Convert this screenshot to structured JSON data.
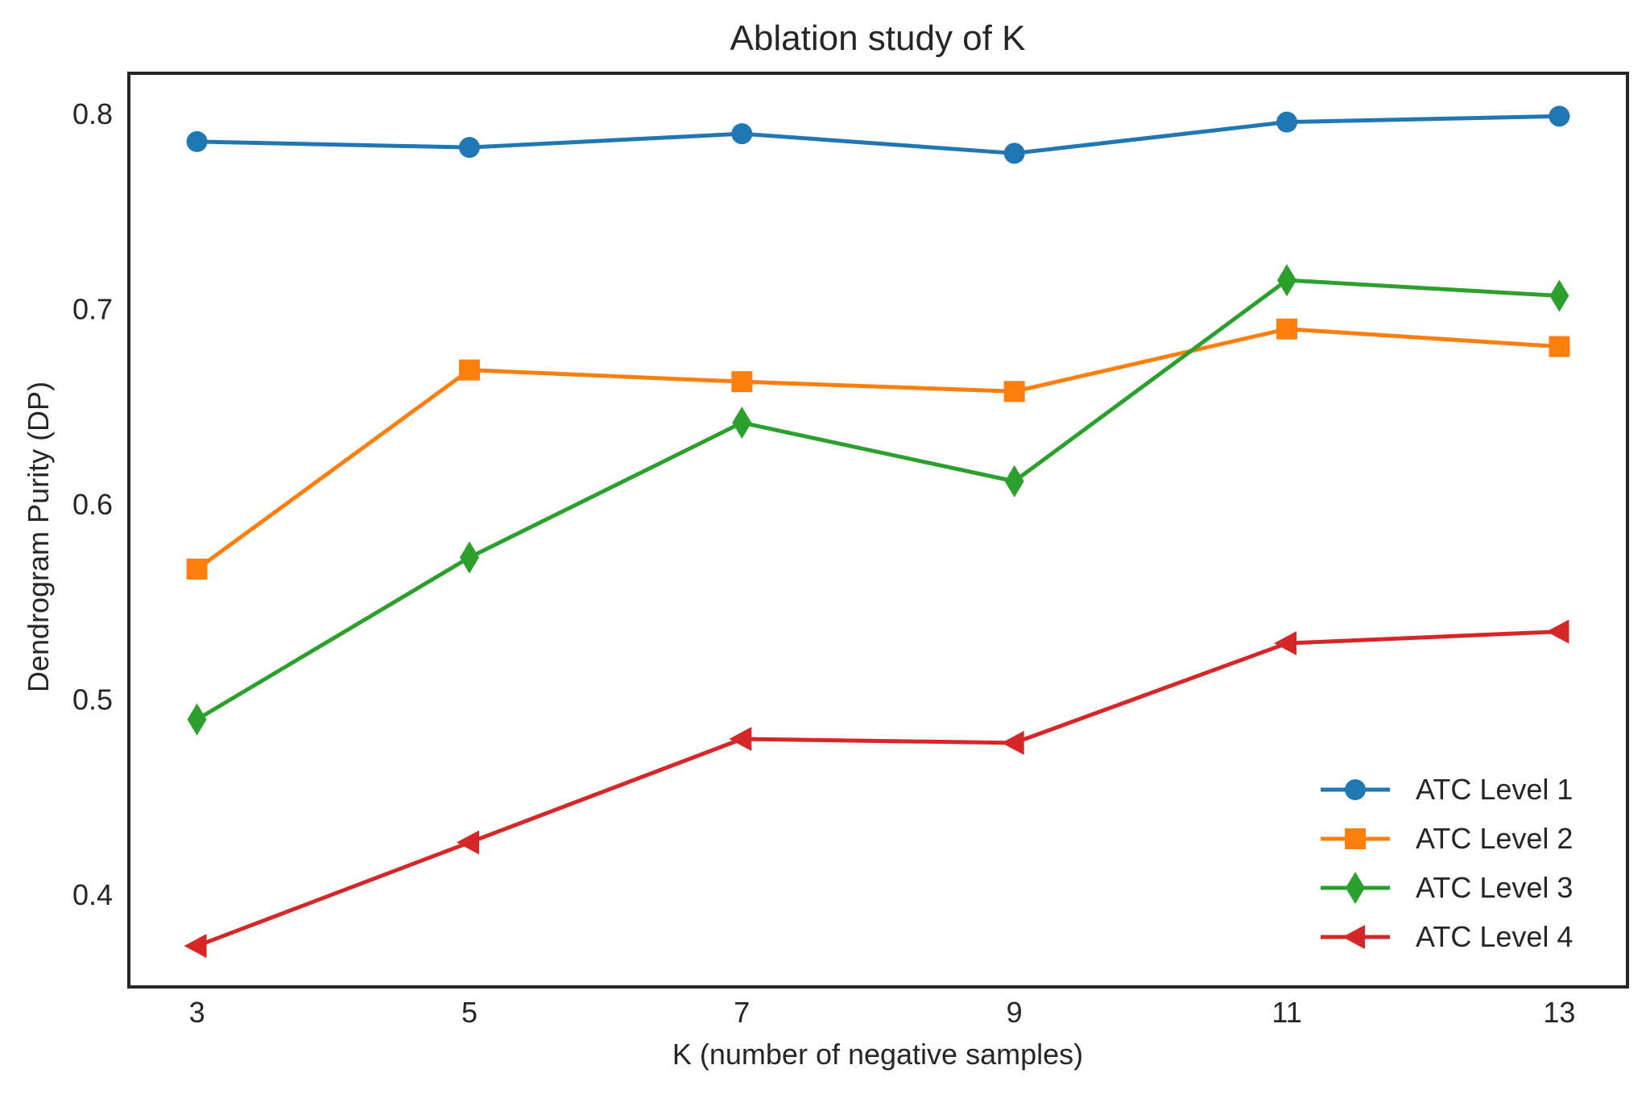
{
  "chart_data": {
    "type": "line",
    "title": "Ablation study of K",
    "xlabel": "K (number of negative samples)",
    "ylabel": "Dendrogram Purity (DP)",
    "x": [
      3,
      5,
      7,
      9,
      11,
      13
    ],
    "x_tick_labels": [
      "3",
      "5",
      "7",
      "9",
      "11",
      "13"
    ],
    "xlim": [
      2.5,
      13.5
    ],
    "ylim": [
      0.353,
      0.821
    ],
    "y_ticks": [
      0.4,
      0.5,
      0.6,
      0.7,
      0.8
    ],
    "y_tick_labels": [
      "0.4",
      "0.5",
      "0.6",
      "0.7",
      "0.8"
    ],
    "grid": false,
    "legend_position": "lower-right",
    "series": [
      {
        "name": "ATC Level 1",
        "marker": "circle",
        "color": "#1f77b4",
        "values": [
          0.786,
          0.783,
          0.79,
          0.78,
          0.796,
          0.799
        ]
      },
      {
        "name": "ATC Level 2",
        "marker": "square",
        "color": "#ff7f0e",
        "values": [
          0.567,
          0.669,
          0.663,
          0.658,
          0.69,
          0.681
        ]
      },
      {
        "name": "ATC Level 3",
        "marker": "thin-diamond",
        "color": "#2ca02c",
        "values": [
          0.49,
          0.573,
          0.642,
          0.612,
          0.715,
          0.707
        ]
      },
      {
        "name": "ATC Level 4",
        "marker": "triangle-left",
        "color": "#d62728",
        "values": [
          0.374,
          0.427,
          0.48,
          0.478,
          0.529,
          0.535
        ]
      }
    ]
  }
}
